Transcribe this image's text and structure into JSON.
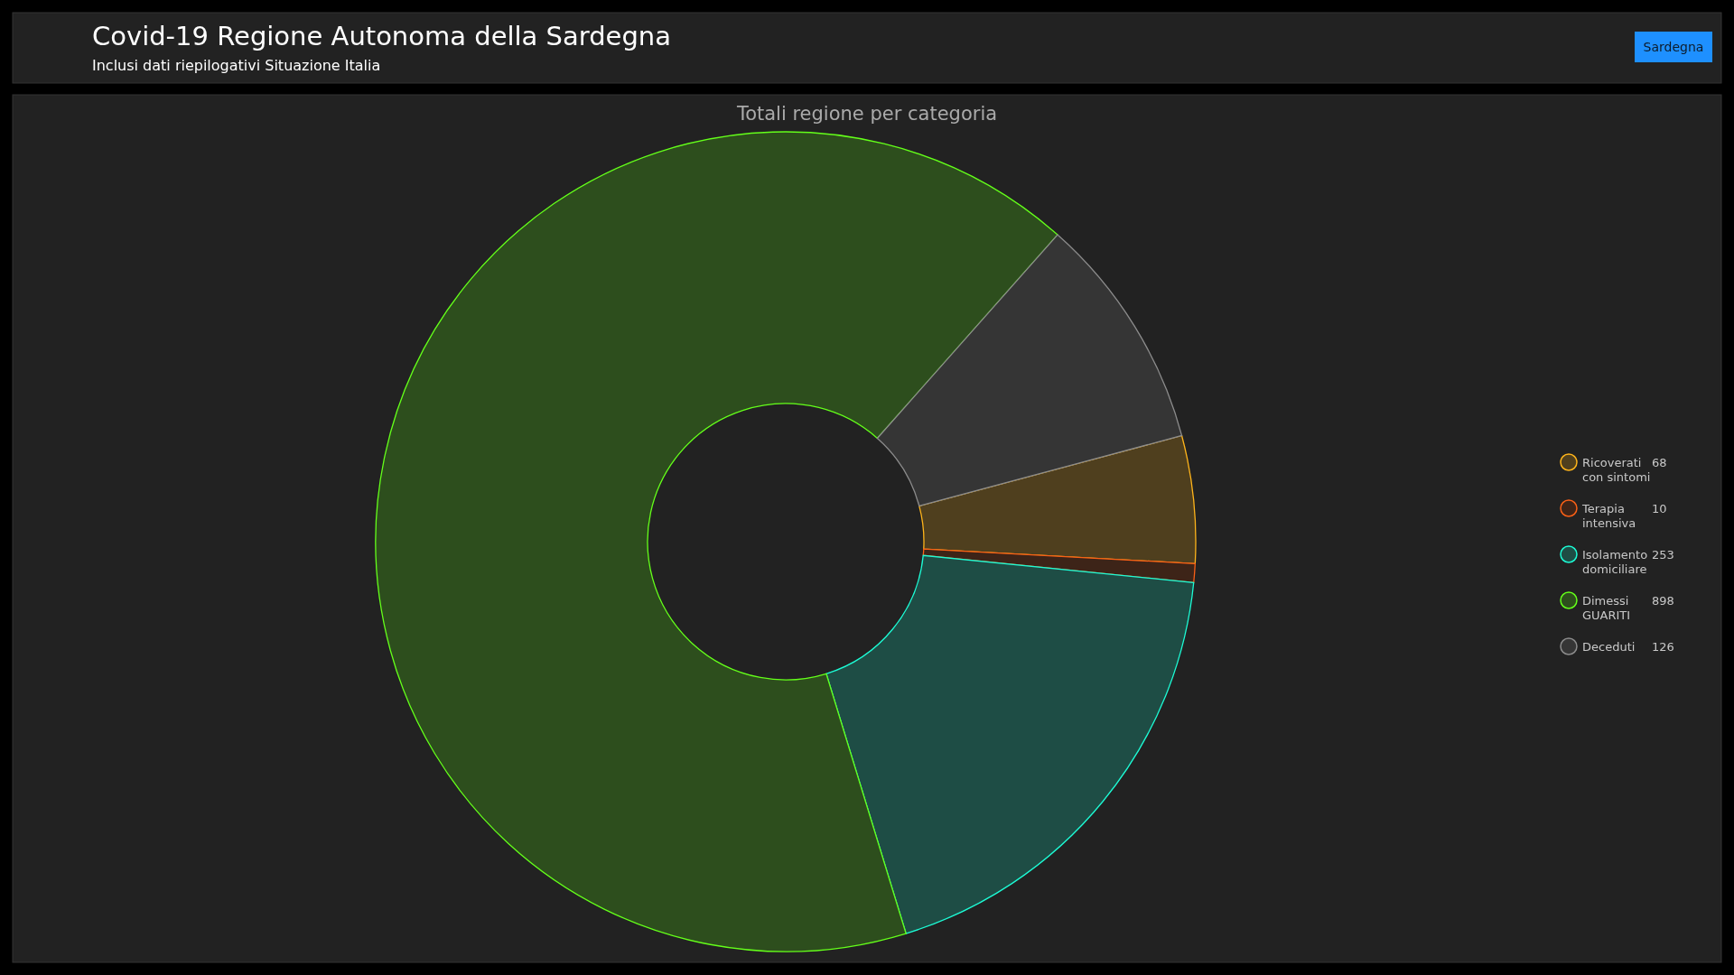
{
  "chart_data": {
    "type": "donut",
    "title": "Covid-19 Regione Autonoma della Sardegna",
    "subtitle": "Inclusi dati riepilogativi Situazione Italia",
    "annotations": [
      "Totali regione per categoria",
      "Sardegna"
    ],
    "categories": [
      "Ricoverati con sintomi",
      "Terapia intensiva",
      "Isolamento domiciliare",
      "Dimessi GUARITI",
      "Deceduti"
    ],
    "values": [
      68,
      10,
      253,
      898,
      126
    ],
    "colors": [
      "#4f3f1e",
      "#3d2418",
      "#1e4d45",
      "#2d4e1d",
      "#353535"
    ],
    "data_labels": true,
    "legend": "right"
  }
}
